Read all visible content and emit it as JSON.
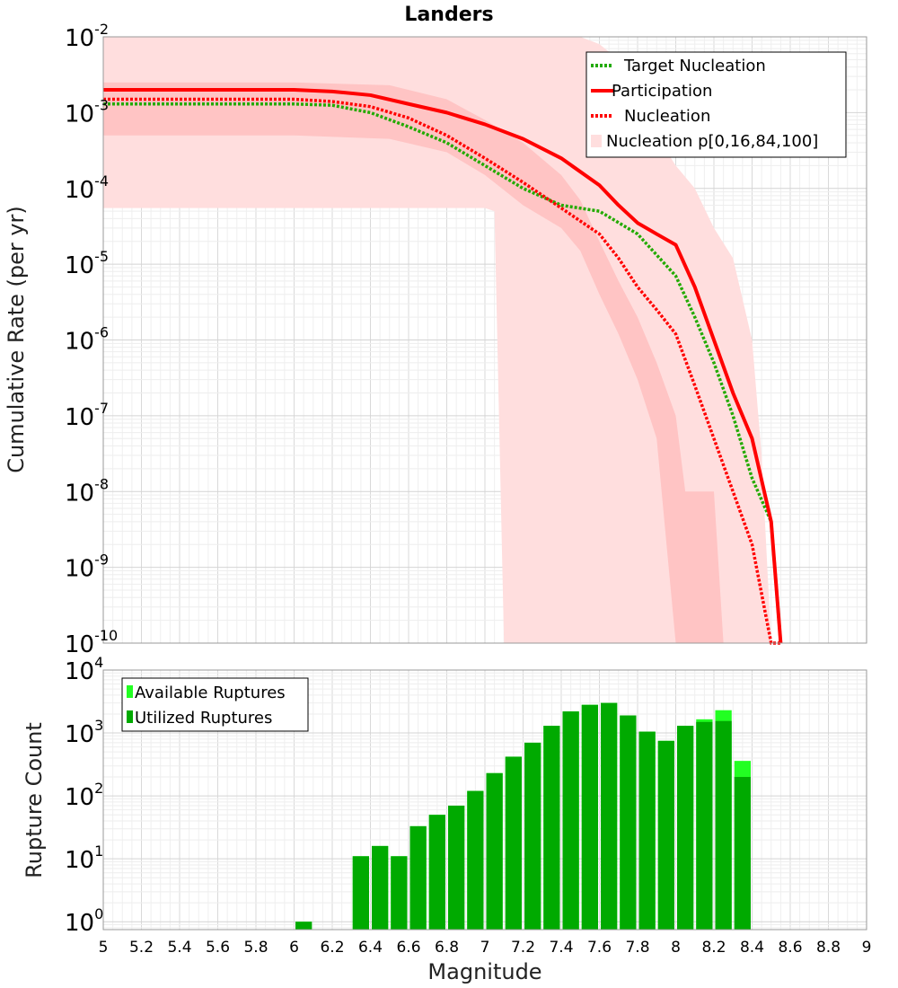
{
  "chart_data": [
    {
      "type": "line",
      "title": "Landers",
      "xlabel": "",
      "ylabel": "Cumulative Rate (per yr)",
      "xlim": [
        5,
        9
      ],
      "ylim": [
        1e-10,
        0.01
      ],
      "yscale": "log",
      "grid": true,
      "legend_position": "top-right",
      "yticks": [
        {
          "base": "10",
          "exp": "-2"
        },
        {
          "base": "10",
          "exp": "-3"
        },
        {
          "base": "10",
          "exp": "-4"
        },
        {
          "base": "10",
          "exp": "-5"
        },
        {
          "base": "10",
          "exp": "-6"
        },
        {
          "base": "10",
          "exp": "-7"
        },
        {
          "base": "10",
          "exp": "-8"
        },
        {
          "base": "10",
          "exp": "-9"
        },
        {
          "base": "10",
          "exp": "-10"
        }
      ],
      "bands": [
        {
          "name": "Nucleation p[0,16,84,100]",
          "color": "#ffdede",
          "x": [
            5.0,
            5.5,
            6.0,
            6.5,
            7.0,
            7.05,
            7.1,
            7.2,
            7.3,
            7.4,
            7.5,
            7.6,
            7.7,
            7.8,
            7.9,
            8.0,
            8.1,
            8.2,
            8.3,
            8.4,
            8.45,
            8.5,
            8.55
          ],
          "lower": [
            5.5e-05,
            5.5e-05,
            5.5e-05,
            5.5e-05,
            5.5e-05,
            5e-05,
            1e-10,
            1e-10,
            1e-10,
            1e-10,
            1e-10,
            1e-10,
            1e-10,
            1e-10,
            1e-10,
            1e-10,
            1e-10,
            1e-10,
            1e-10,
            1e-10,
            1e-10,
            1e-10,
            1e-10
          ],
          "upper": [
            0.01,
            0.01,
            0.01,
            0.01,
            0.01,
            0.01,
            0.01,
            0.01,
            0.01,
            0.01,
            0.01,
            0.008,
            0.005,
            0.0012,
            0.0005,
            0.0002,
            0.0001,
            3e-05,
            1.2e-05,
            1e-06,
            3e-08,
            1e-10,
            1e-10
          ]
        },
        {
          "name": "Nucleation p16-84",
          "color": "#ffc4c4",
          "x": [
            5.0,
            5.5,
            6.0,
            6.5,
            6.8,
            7.0,
            7.2,
            7.4,
            7.5,
            7.6,
            7.7,
            7.8,
            7.9,
            8.0,
            8.05,
            8.1,
            8.2,
            8.25
          ],
          "lower": [
            0.0005,
            0.0005,
            0.0005,
            0.00045,
            0.0003,
            0.00015,
            6e-05,
            3e-05,
            1.5e-05,
            4e-06,
            1.2e-06,
            3e-07,
            5e-08,
            1e-10,
            1e-10,
            1e-10,
            1e-10,
            1e-10
          ],
          "upper": [
            0.0025,
            0.0025,
            0.0025,
            0.0023,
            0.0015,
            0.0008,
            0.0004,
            0.00015,
            7e-05,
            2e-05,
            6e-06,
            2e-06,
            5e-07,
            1e-07,
            1e-08,
            1e-08,
            1e-08,
            1e-10
          ]
        }
      ],
      "series": [
        {
          "name": "Target Nucleation",
          "color": "#22aa00",
          "style": "dotted",
          "x": [
            5.0,
            6.0,
            6.2,
            6.4,
            6.6,
            6.8,
            7.0,
            7.2,
            7.4,
            7.6,
            7.8,
            8.0,
            8.1,
            8.2,
            8.3,
            8.4,
            8.5,
            8.55
          ],
          "y": [
            0.0013,
            0.0013,
            0.00125,
            0.001,
            0.00065,
            0.0004,
            0.0002,
            0.0001,
            6e-05,
            5e-05,
            2.5e-05,
            7e-06,
            2e-06,
            5e-07,
            1e-07,
            1.5e-08,
            4e-09,
            1e-10
          ]
        },
        {
          "name": "Participation",
          "color": "#ff0000",
          "style": "solid",
          "x": [
            5.0,
            6.0,
            6.2,
            6.4,
            6.6,
            6.8,
            7.0,
            7.2,
            7.4,
            7.6,
            7.7,
            7.8,
            7.9,
            8.0,
            8.1,
            8.2,
            8.3,
            8.4,
            8.5,
            8.55
          ],
          "y": [
            0.002,
            0.002,
            0.0019,
            0.0017,
            0.0013,
            0.001,
            0.0007,
            0.00045,
            0.00025,
            0.00011,
            6e-05,
            3.5e-05,
            2.5e-05,
            1.8e-05,
            5e-06,
            1e-06,
            2e-07,
            5e-08,
            4e-09,
            1e-10
          ]
        },
        {
          "name": "Nucleation",
          "color": "#ff0000",
          "style": "dotted",
          "x": [
            5.0,
            6.0,
            6.2,
            6.4,
            6.6,
            6.8,
            7.0,
            7.2,
            7.4,
            7.6,
            7.7,
            7.8,
            7.9,
            8.0,
            8.1,
            8.2,
            8.3,
            8.4,
            8.5,
            8.55
          ],
          "y": [
            0.0015,
            0.0015,
            0.0014,
            0.0012,
            0.00085,
            0.0005,
            0.00025,
            0.00012,
            5.5e-05,
            2.5e-05,
            1.2e-05,
            5e-06,
            2.5e-06,
            1.2e-06,
            2.5e-07,
            5e-08,
            1e-08,
            2e-09,
            1e-10,
            1e-10
          ]
        }
      ],
      "legend": [
        {
          "label": "Target Nucleation",
          "color": "#22aa00",
          "style": "dotted"
        },
        {
          "label": "Participation",
          "color": "#ff0000",
          "style": "solid"
        },
        {
          "label": "Nucleation",
          "color": "#ff0000",
          "style": "dotted"
        },
        {
          "label": "Nucleation p[0,16,84,100]",
          "color": "#ffdede",
          "style": "band"
        }
      ]
    },
    {
      "type": "bar",
      "title": "",
      "xlabel": "Magnitude",
      "ylabel": "Rupture Count",
      "xlim": [
        5,
        9
      ],
      "ylim": [
        0.75,
        10000
      ],
      "yscale": "log",
      "grid": true,
      "legend_position": "top-left",
      "xticks": [
        "5",
        "5.2",
        "5.4",
        "5.6",
        "5.8",
        "6",
        "6.2",
        "6.4",
        "6.6",
        "6.8",
        "7",
        "7.2",
        "7.4",
        "7.6",
        "7.8",
        "8",
        "8.2",
        "8.4",
        "8.6",
        "8.8",
        "9"
      ],
      "yticks": [
        {
          "base": "10",
          "exp": "4"
        },
        {
          "base": "10",
          "exp": "3"
        },
        {
          "base": "10",
          "exp": "2"
        },
        {
          "base": "10",
          "exp": "1"
        },
        {
          "base": "10",
          "exp": "0"
        }
      ],
      "bin_width": 0.1,
      "bin_centers": [
        6.05,
        6.35,
        6.45,
        6.55,
        6.65,
        6.75,
        6.85,
        6.95,
        7.05,
        7.15,
        7.25,
        7.35,
        7.45,
        7.55,
        7.65,
        7.75,
        7.85,
        7.95,
        8.05,
        8.15,
        8.25,
        8.35
      ],
      "series": [
        {
          "name": "Available Ruptures",
          "color": "#22ff22",
          "values": [
            1,
            11,
            16,
            11,
            33,
            50,
            70,
            120,
            230,
            420,
            700,
            1300,
            2200,
            2800,
            3000,
            1900,
            1050,
            750,
            1300,
            1650,
            2300,
            360
          ]
        },
        {
          "name": "Utilized Ruptures",
          "color": "#00aa00",
          "values": [
            1,
            11,
            16,
            11,
            33,
            50,
            70,
            120,
            230,
            420,
            700,
            1300,
            2200,
            2800,
            3000,
            1900,
            1050,
            750,
            1300,
            1500,
            1550,
            200
          ]
        }
      ],
      "legend": [
        {
          "label": "Available Ruptures",
          "color": "#22ff22"
        },
        {
          "label": "Utilized Ruptures",
          "color": "#00aa00"
        }
      ]
    }
  ]
}
